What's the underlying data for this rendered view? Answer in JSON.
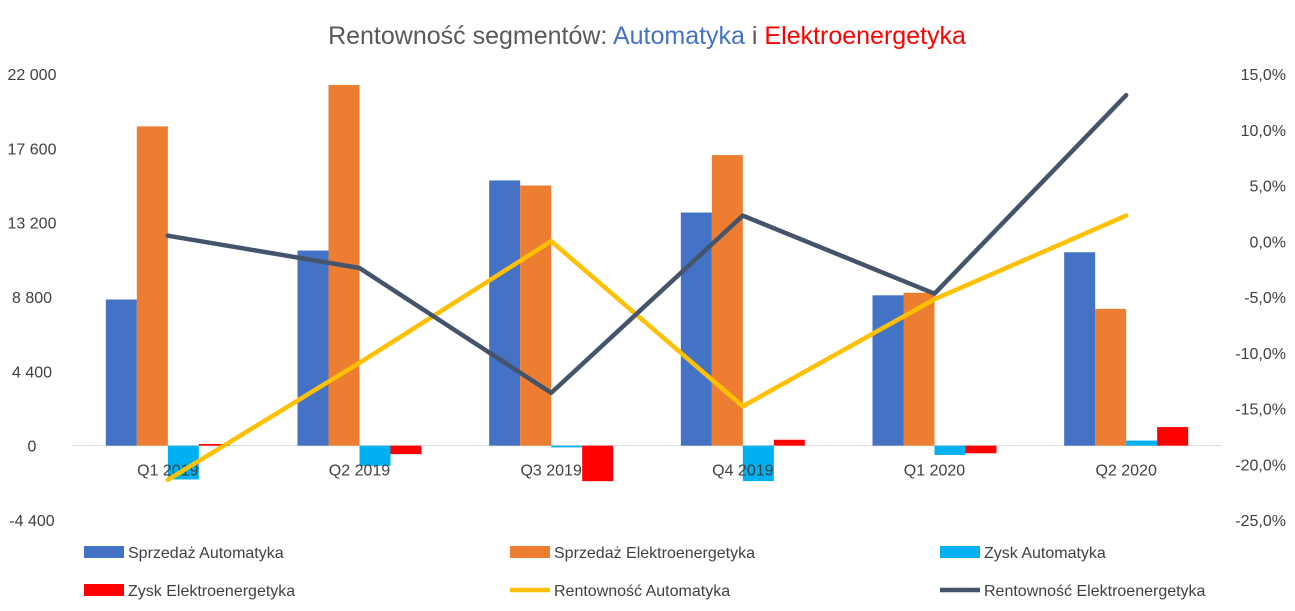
{
  "chart_data": {
    "type": "bar",
    "title": {
      "prefix": "Rentowność segmentów: ",
      "part1": "Automatyka",
      "part1_color": "#4472C4",
      "connector": " i ",
      "part2": "Elektroenergetyka",
      "part2_color": "#FF0000"
    },
    "categories": [
      "Q1 2019",
      "Q2 2019",
      "Q3 2019",
      "Q4 2019",
      "Q1 2020",
      "Q2 2020"
    ],
    "left_axis": {
      "ylim": [
        -4400,
        22000
      ],
      "ticks": [
        -4400,
        0,
        4400,
        8800,
        13200,
        17600,
        22000
      ],
      "tick_labels": [
        "-4 400",
        "0",
        "4 400",
        "8 800",
        "13 200",
        "17 600",
        "22 000"
      ]
    },
    "right_axis": {
      "ylim": [
        -0.25,
        0.15
      ],
      "ticks": [
        -0.25,
        -0.2,
        -0.15,
        -0.1,
        -0.05,
        0.0,
        0.05,
        0.1,
        0.15
      ],
      "tick_labels": [
        "-25,0%",
        "-20,0%",
        "-15,0%",
        "-10,0%",
        "-5,0%",
        "0,0%",
        "5,0%",
        "10,0%",
        "15,0%"
      ]
    },
    "bar_series": [
      {
        "name": "Sprzedaż Automatyka",
        "color": "#4472C4",
        "values": [
          8650,
          11550,
          15700,
          13800,
          8900,
          11450
        ]
      },
      {
        "name": "Sprzedaż Elektroenergetyka",
        "color": "#ED7D31",
        "values": [
          18900,
          21350,
          15400,
          17200,
          9050,
          8100
        ]
      },
      {
        "name": "Zysk Automatyka",
        "color": "#00B0F0",
        "values": [
          -2000,
          -1200,
          -100,
          -2100,
          -550,
          300
        ]
      },
      {
        "name": "Zysk Elektroenergetyka",
        "color": "#FF0000",
        "values": [
          100,
          -500,
          -2100,
          350,
          -450,
          1100
        ]
      }
    ],
    "line_series": [
      {
        "name": "Rentowność Automatyka",
        "color": "#FFC000",
        "values": [
          -0.214,
          -0.109,
          0.0,
          -0.148,
          -0.052,
          0.023
        ]
      },
      {
        "name": "Rentowność Elektroenergetyka",
        "color": "#44546A",
        "values": [
          0.005,
          -0.024,
          -0.136,
          0.023,
          -0.047,
          0.131
        ]
      }
    ],
    "grid": false,
    "legend_position": "bottom"
  }
}
